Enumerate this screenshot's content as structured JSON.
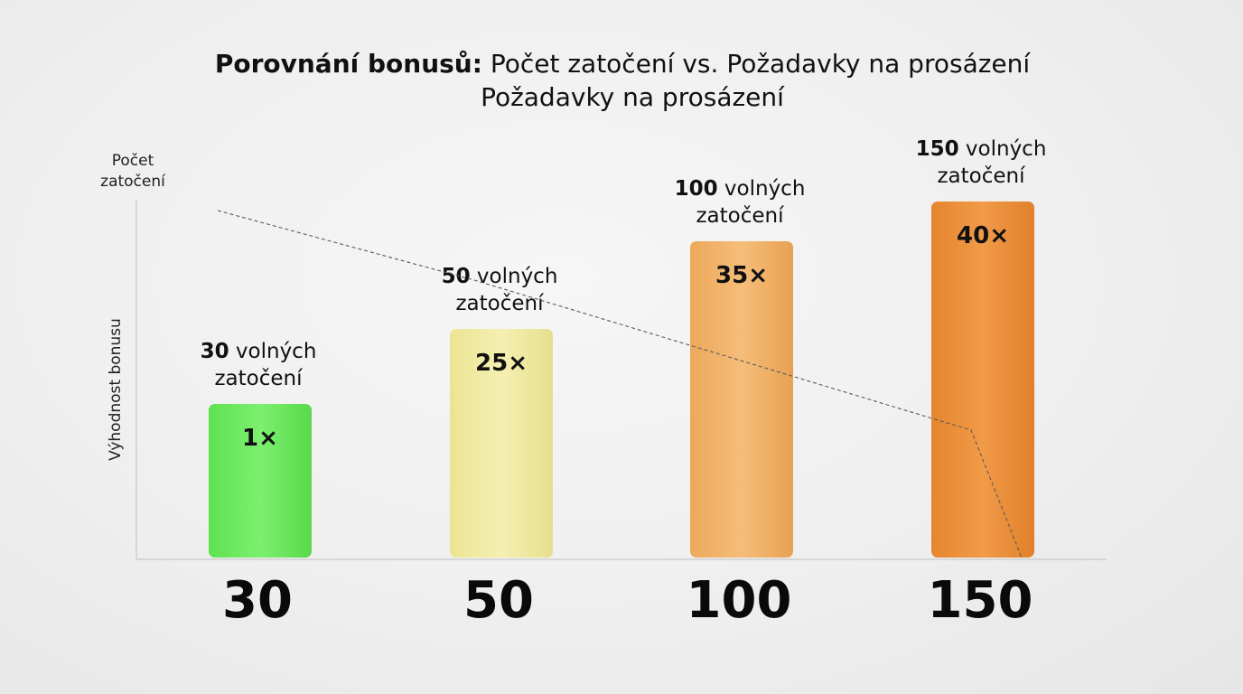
{
  "chart_data": {
    "type": "bar",
    "title_bold": "Porovnání bonusů:",
    "title_rest": "Počet zatočení vs. Požadavky na prosázení",
    "subtitle": "Požadavky na prosázení",
    "y_top_label_line1": "Počet",
    "y_top_label_line2": "zatočení",
    "ylabel": "Výhodnost bonusu",
    "categories": [
      "30",
      "50",
      "100",
      "150"
    ],
    "bar_label_suffix_line1": "volných",
    "bar_label_line2": "zatočení",
    "values": [
      30,
      50,
      100,
      150
    ],
    "wagering": [
      "1×",
      "25×",
      "35×",
      "40×"
    ],
    "wagering_values": [
      1,
      25,
      35,
      40
    ],
    "colors": [
      "#6fea63",
      "#f0eba0",
      "#f2b166",
      "#ec933e"
    ],
    "trend_line": "dashed, decreasing",
    "grid": false,
    "legend": "none"
  }
}
